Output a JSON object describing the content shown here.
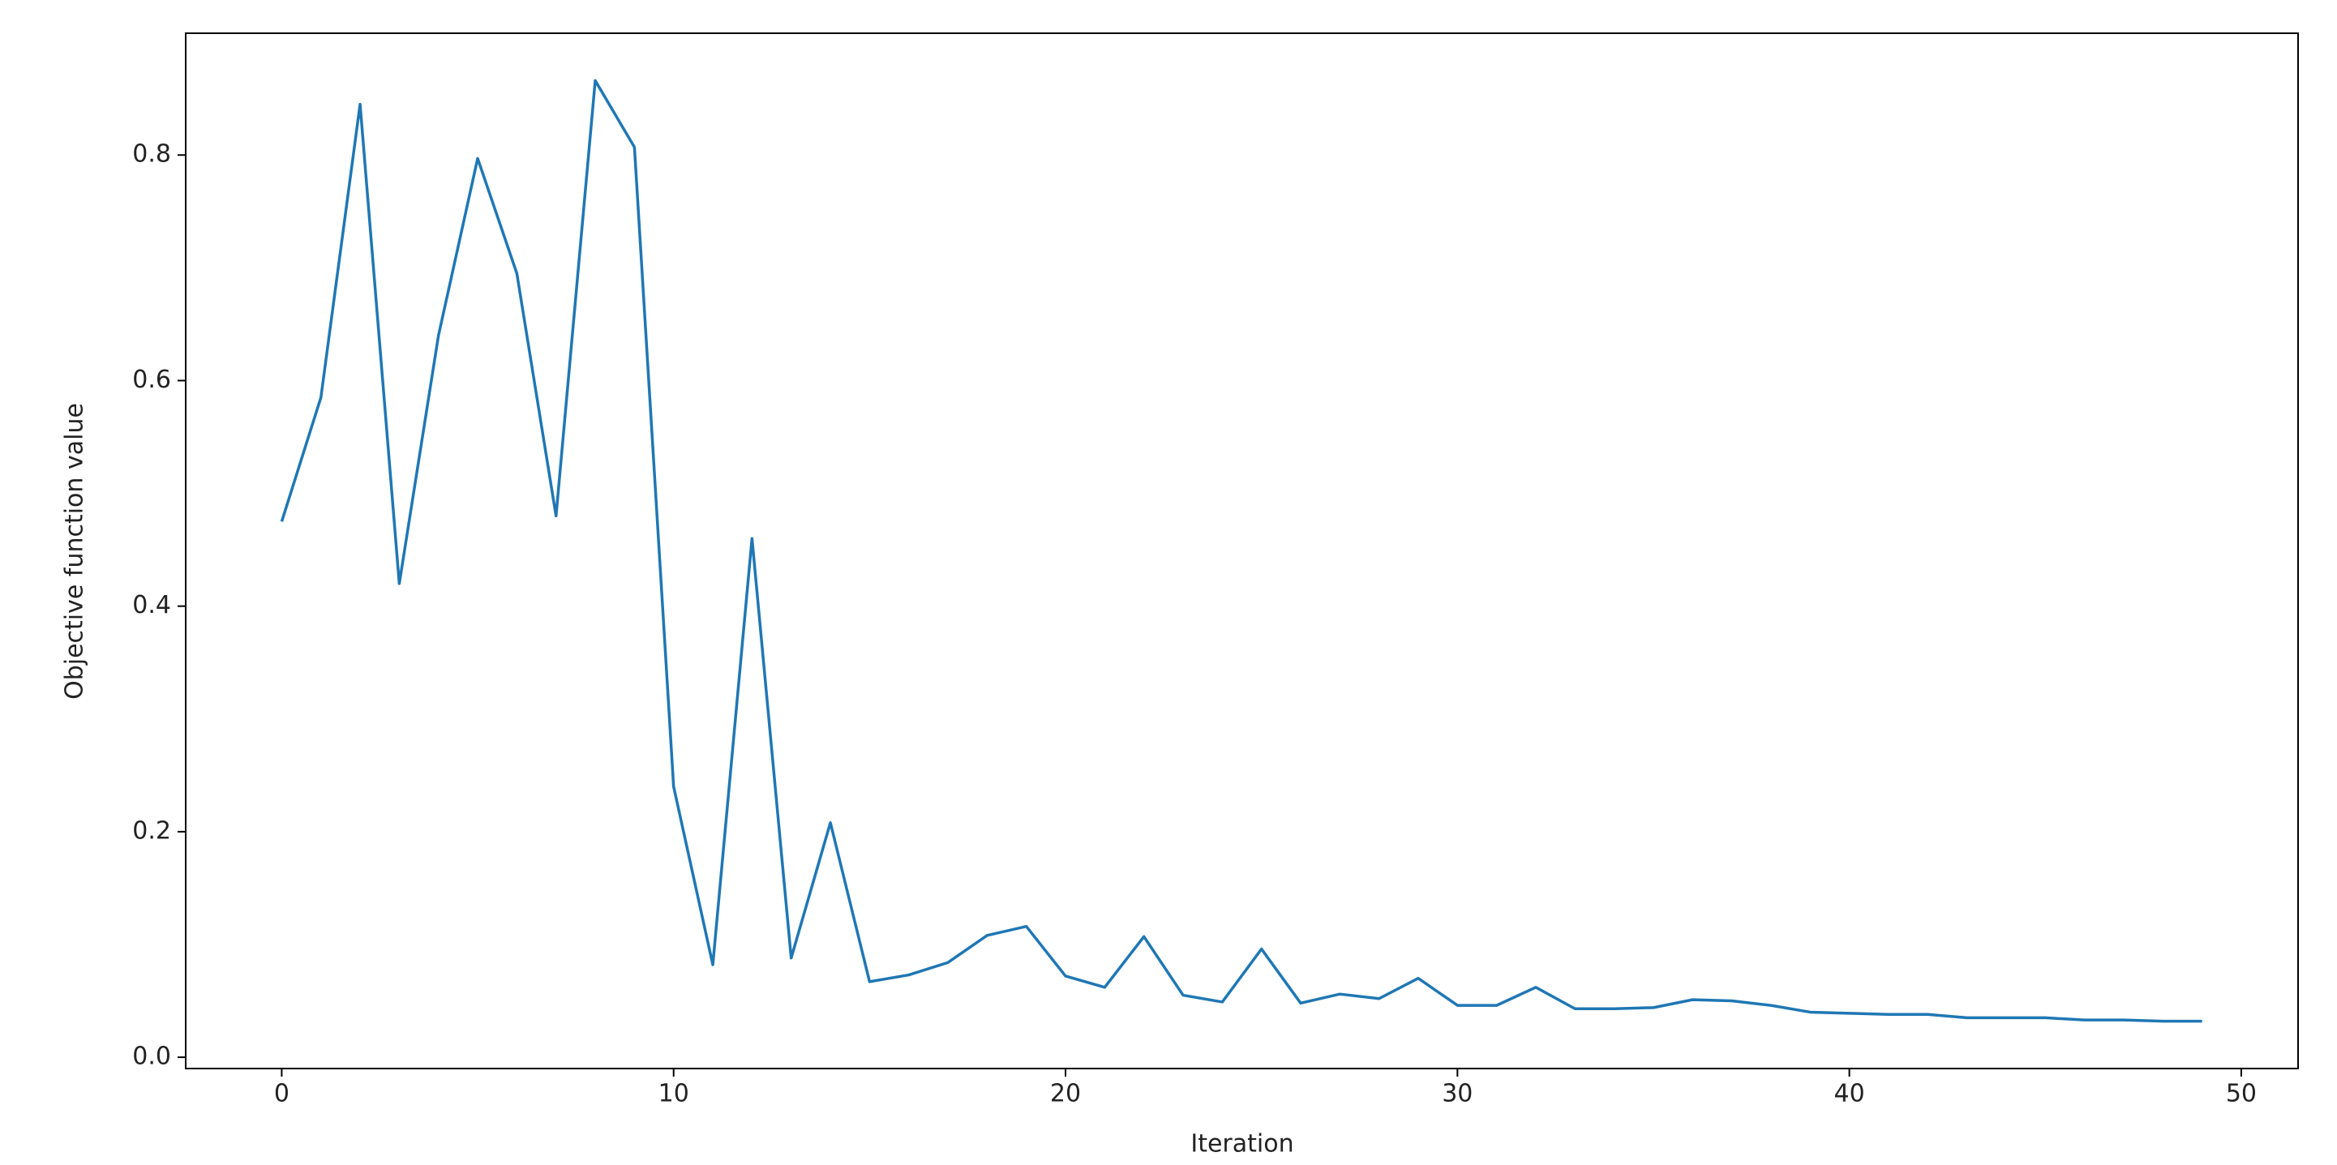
{
  "chart_data": {
    "type": "line",
    "x_label": "Iteration",
    "y_label": "Objective function value",
    "x": [
      0,
      1,
      2,
      3,
      4,
      5,
      6,
      7,
      8,
      9,
      10,
      11,
      12,
      13,
      14,
      15,
      16,
      17,
      18,
      19,
      20,
      21,
      22,
      23,
      24,
      25,
      26,
      27,
      28,
      29,
      30,
      31,
      32,
      33,
      34,
      35,
      36,
      37,
      38,
      39,
      40,
      41,
      42,
      43,
      44,
      45,
      46,
      47,
      48,
      49
    ],
    "values": [
      0.475,
      0.585,
      0.845,
      0.42,
      0.64,
      0.797,
      0.695,
      0.48,
      0.866,
      0.807,
      0.24,
      0.082,
      0.46,
      0.088,
      0.208,
      0.067,
      0.073,
      0.084,
      0.108,
      0.116,
      0.072,
      0.062,
      0.107,
      0.055,
      0.049,
      0.096,
      0.048,
      0.056,
      0.052,
      0.07,
      0.046,
      0.046,
      0.062,
      0.043,
      0.043,
      0.044,
      0.051,
      0.05,
      0.046,
      0.04,
      0.039,
      0.038,
      0.038,
      0.035,
      0.035,
      0.035,
      0.033,
      0.033,
      0.032,
      0.032
    ],
    "color": "#1f77b4",
    "xlim": [
      -2.45,
      51.45
    ],
    "xticks": [
      0,
      10,
      20,
      30,
      40,
      50
    ],
    "ylim": [
      -0.01,
      0.908
    ],
    "yticks": [
      {
        "value": 0,
        "label": "0.0"
      },
      0.2,
      0.4,
      0.6,
      0.8
    ],
    "grid": false
  }
}
